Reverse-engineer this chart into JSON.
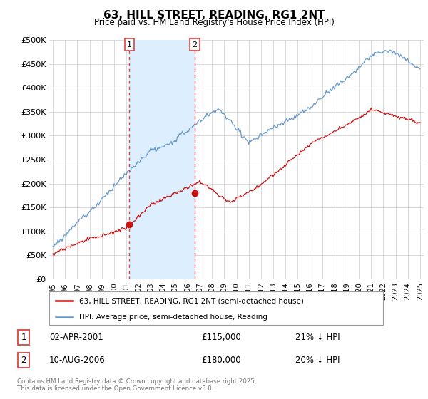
{
  "title": "63, HILL STREET, READING, RG1 2NT",
  "subtitle": "Price paid vs. HM Land Registry's House Price Index (HPI)",
  "ylabel_ticks": [
    "£0",
    "£50K",
    "£100K",
    "£150K",
    "£200K",
    "£250K",
    "£300K",
    "£350K",
    "£400K",
    "£450K",
    "£500K"
  ],
  "ytick_values": [
    0,
    50000,
    100000,
    150000,
    200000,
    250000,
    300000,
    350000,
    400000,
    450000,
    500000
  ],
  "xlim_years": [
    1994.7,
    2025.3
  ],
  "ylim": [
    0,
    500000
  ],
  "hpi_color": "#6699cc",
  "price_color": "#cc1111",
  "vline_color": "#dd4444",
  "shade_color": "#ddeeff",
  "marker1_year": 2001.25,
  "marker1_price": 115000,
  "marker2_year": 2006.6,
  "marker2_price": 180000,
  "legend_label_price": "63, HILL STREET, READING, RG1 2NT (semi-detached house)",
  "legend_label_hpi": "HPI: Average price, semi-detached house, Reading",
  "annotation1_label": "1",
  "annotation1_date": "02-APR-2001",
  "annotation1_price": "£115,000",
  "annotation1_hpi": "21% ↓ HPI",
  "annotation2_label": "2",
  "annotation2_date": "10-AUG-2006",
  "annotation2_price": "£180,000",
  "annotation2_hpi": "20% ↓ HPI",
  "footer": "Contains HM Land Registry data © Crown copyright and database right 2025.\nThis data is licensed under the Open Government Licence v3.0.",
  "background_color": "#ffffff",
  "grid_color": "#cccccc"
}
